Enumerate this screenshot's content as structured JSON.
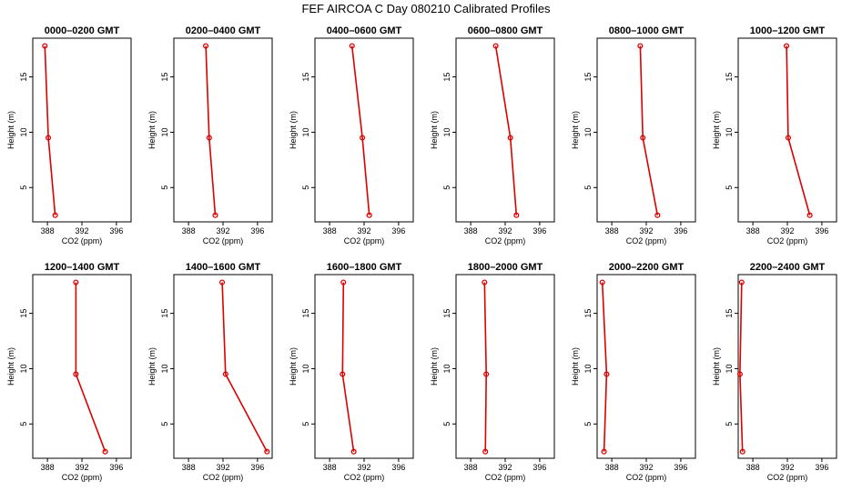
{
  "figure_title": "FEF AIRCOA C  Day 080210  Calibrated Profiles",
  "chart_data": {
    "type": "line",
    "title": "FEF AIRCOA C  Day 080210  Calibrated Profiles",
    "xlabel": "CO2 (ppm)",
    "ylabel": "Height (m)",
    "xlim": [
      386.3,
      397.7
    ],
    "ylim": [
      1.9,
      18.5
    ],
    "xticks": [
      388,
      392,
      396
    ],
    "yticks": [
      5,
      10,
      15
    ],
    "grid": false,
    "line_color": "#dd0000",
    "marker": "open-circle",
    "panels": [
      {
        "title": "0000–0200 GMT",
        "x": [
          387.7,
          388.1,
          388.9
        ],
        "y": [
          17.8,
          9.5,
          2.5
        ]
      },
      {
        "title": "0200–0400 GMT",
        "x": [
          390.0,
          390.4,
          391.1
        ],
        "y": [
          17.8,
          9.5,
          2.5
        ]
      },
      {
        "title": "0400–0600 GMT",
        "x": [
          390.6,
          391.8,
          392.6
        ],
        "y": [
          17.8,
          9.5,
          2.5
        ]
      },
      {
        "title": "0600–0800 GMT",
        "x": [
          390.9,
          392.6,
          393.3
        ],
        "y": [
          17.8,
          9.5,
          2.5
        ]
      },
      {
        "title": "0800–1000 GMT",
        "x": [
          391.3,
          391.6,
          393.3
        ],
        "y": [
          17.8,
          9.5,
          2.5
        ]
      },
      {
        "title": "1000–1200 GMT",
        "x": [
          391.9,
          392.1,
          394.6
        ],
        "y": [
          17.8,
          9.5,
          2.5
        ]
      },
      {
        "title": "1200–1400 GMT",
        "x": [
          391.3,
          391.3,
          394.7
        ],
        "y": [
          17.8,
          9.5,
          2.5
        ]
      },
      {
        "title": "1400–1600 GMT",
        "x": [
          391.9,
          392.3,
          397.1
        ],
        "y": [
          17.8,
          9.5,
          2.5
        ]
      },
      {
        "title": "1600–1800 GMT",
        "x": [
          389.6,
          389.5,
          390.8
        ],
        "y": [
          17.8,
          9.5,
          2.5
        ]
      },
      {
        "title": "1800–2000 GMT",
        "x": [
          389.6,
          389.8,
          389.7
        ],
        "y": [
          17.8,
          9.5,
          2.5
        ]
      },
      {
        "title": "2000–2200 GMT",
        "x": [
          386.9,
          387.4,
          387.1
        ],
        "y": [
          17.8,
          9.5,
          2.5
        ]
      },
      {
        "title": "2200–2400 GMT",
        "x": [
          386.7,
          386.5,
          386.8
        ],
        "y": [
          17.8,
          9.5,
          2.5
        ]
      }
    ]
  }
}
